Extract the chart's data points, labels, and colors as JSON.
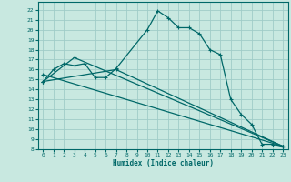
{
  "title": "",
  "xlabel": "Humidex (Indice chaleur)",
  "bg_color": "#c8e8e0",
  "grid_color": "#a0ccc8",
  "line_color": "#006868",
  "marker": "+",
  "xlim": [
    -0.5,
    23.5
  ],
  "ylim": [
    8,
    22.8
  ],
  "xticks": [
    0,
    1,
    2,
    3,
    4,
    5,
    6,
    7,
    8,
    9,
    10,
    11,
    12,
    13,
    14,
    15,
    16,
    17,
    18,
    19,
    20,
    21,
    22,
    23
  ],
  "yticks": [
    8,
    9,
    10,
    11,
    12,
    13,
    14,
    15,
    16,
    17,
    18,
    19,
    20,
    21,
    22
  ],
  "line1_x": [
    0,
    1,
    2,
    3,
    4,
    5,
    6,
    7,
    10,
    11,
    12,
    13,
    14,
    15,
    16,
    17,
    18,
    19,
    20,
    21,
    22,
    23
  ],
  "line1_y": [
    14.8,
    16.0,
    16.6,
    16.4,
    16.6,
    15.2,
    15.2,
    16.1,
    20.0,
    21.9,
    21.2,
    20.2,
    20.2,
    19.6,
    18.0,
    17.5,
    13.0,
    11.5,
    10.5,
    8.5,
    8.5,
    8.3
  ],
  "line2_x": [
    0,
    3,
    23
  ],
  "line2_y": [
    14.8,
    17.2,
    8.3
  ],
  "line3_x": [
    0,
    7,
    23
  ],
  "line3_y": [
    14.8,
    16.0,
    8.3
  ],
  "line4_x": [
    0,
    23
  ],
  "line4_y": [
    15.5,
    8.3
  ]
}
